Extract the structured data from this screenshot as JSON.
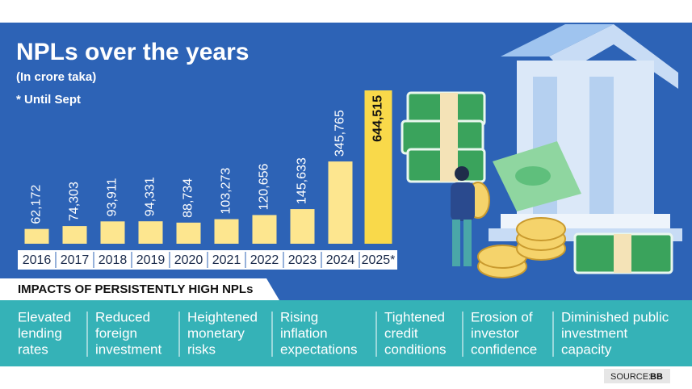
{
  "header": {
    "title": "NPLs over the years",
    "subtitle": "(In crore taka)",
    "note": "* Until Sept"
  },
  "chart_data": {
    "type": "bar",
    "categories": [
      "2016",
      "2017",
      "2018",
      "2019",
      "2020",
      "2021",
      "2022",
      "2023",
      "2024",
      "2025*"
    ],
    "values": [
      62172,
      74303,
      93911,
      94331,
      88734,
      103273,
      120656,
      145633,
      345765,
      644515
    ],
    "value_labels": [
      "62,172",
      "74,303",
      "93,911",
      "94,331",
      "88,734",
      "103,273",
      "120,656",
      "145,633",
      "345,765",
      "644,515"
    ],
    "colors": [
      "#fde68f",
      "#fde68f",
      "#fde68f",
      "#fde68f",
      "#fde68f",
      "#fde68f",
      "#fde68f",
      "#fde68f",
      "#fde68f",
      "#f9d94a"
    ]
  },
  "impacts": {
    "heading": "IMPACTS OF PERSISTENTLY HIGH NPLs",
    "items": [
      [
        "Elevated",
        "lending",
        "rates"
      ],
      [
        "Reduced",
        "foreign",
        "investment"
      ],
      [
        "Heightened",
        "monetary",
        "risks"
      ],
      [
        "Rising",
        "inflation",
        "expectations"
      ],
      [
        "Tightened",
        "credit",
        "conditions"
      ],
      [
        "Erosion of",
        "investor",
        "confidence"
      ],
      [
        "Diminished public",
        "investment",
        "capacity"
      ]
    ]
  },
  "source": {
    "label": "SOURCE:",
    "name": "BB"
  }
}
